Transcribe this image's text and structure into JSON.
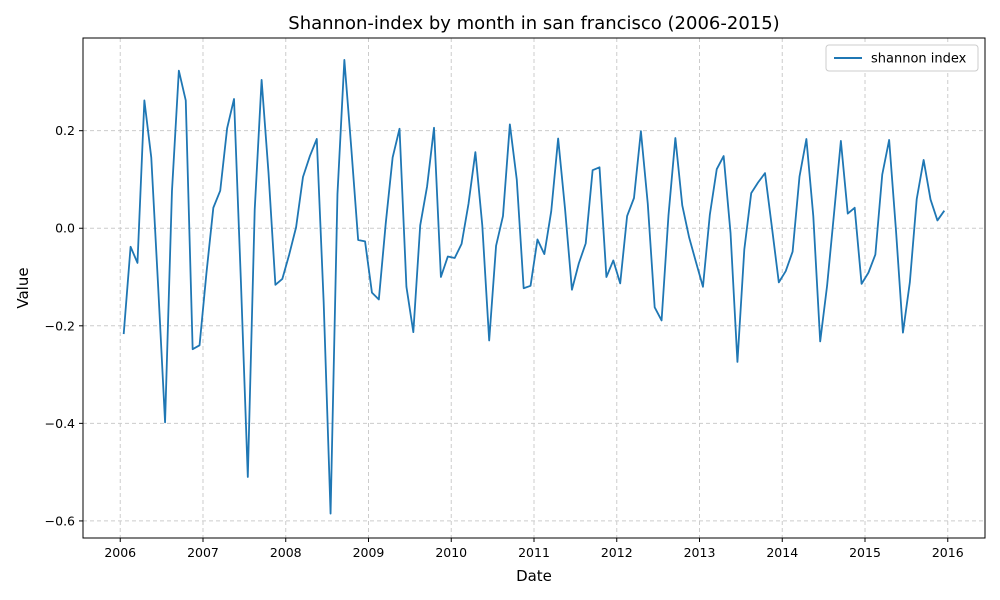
{
  "chart_data": {
    "type": "line",
    "title": "Shannon-index by month in san francisco (2006-2015)",
    "xlabel": "Date",
    "ylabel": "Value",
    "xlim": [
      2005.55,
      2016.45
    ],
    "ylim": [
      -0.635,
      0.39
    ],
    "grid": true,
    "legend_position": "top-right",
    "x_ticks": [
      2006,
      2007,
      2008,
      2009,
      2010,
      2011,
      2012,
      2013,
      2014,
      2015,
      2016
    ],
    "x_tick_labels": [
      "2006",
      "2007",
      "2008",
      "2009",
      "2010",
      "2011",
      "2012",
      "2013",
      "2014",
      "2015",
      "2016"
    ],
    "y_ticks": [
      -0.6,
      -0.4,
      -0.2,
      0.0,
      0.2
    ],
    "y_tick_labels": [
      "−0.6",
      "−0.4",
      "−0.2",
      "0.0",
      "0.2"
    ],
    "colors": {
      "line": "#1f77b4",
      "grid": "#cccccc",
      "axis": "#000000"
    },
    "series": [
      {
        "name": "shannon index",
        "start_year": 2006,
        "values": [
          -0.217,
          -0.038,
          -0.071,
          0.262,
          0.145,
          -0.12,
          -0.398,
          0.076,
          0.323,
          0.262,
          -0.248,
          -0.24,
          -0.092,
          0.042,
          0.077,
          0.205,
          0.265,
          -0.11,
          -0.51,
          0.038,
          0.304,
          0.114,
          -0.116,
          -0.104,
          -0.054,
          0.002,
          0.105,
          0.148,
          0.183,
          -0.152,
          -0.585,
          0.07,
          0.345,
          0.165,
          -0.024,
          -0.027,
          -0.132,
          -0.146,
          0.01,
          0.145,
          0.204,
          -0.12,
          -0.213,
          0.006,
          0.086,
          0.206,
          -0.1,
          -0.058,
          -0.061,
          -0.032,
          0.05,
          0.156,
          0.006,
          -0.23,
          -0.036,
          0.025,
          0.213,
          0.1,
          -0.123,
          -0.118,
          -0.023,
          -0.053,
          0.035,
          0.184,
          0.04,
          -0.126,
          -0.072,
          -0.031,
          0.119,
          0.125,
          -0.1,
          -0.066,
          -0.113,
          0.025,
          0.062,
          0.199,
          0.05,
          -0.162,
          -0.189,
          0.026,
          0.185,
          0.047,
          -0.019,
          -0.07,
          -0.12,
          0.028,
          0.121,
          0.148,
          -0.01,
          -0.274,
          -0.043,
          0.072,
          0.094,
          0.113,
          0.002,
          -0.111,
          -0.088,
          -0.048,
          0.106,
          0.183,
          0.025,
          -0.232,
          -0.118,
          0.029,
          0.179,
          0.03,
          0.042,
          -0.114,
          -0.091,
          -0.054,
          0.11,
          0.181,
          -0.006,
          -0.214,
          -0.111,
          0.06,
          0.14,
          0.059,
          0.016,
          0.036
        ]
      }
    ]
  }
}
